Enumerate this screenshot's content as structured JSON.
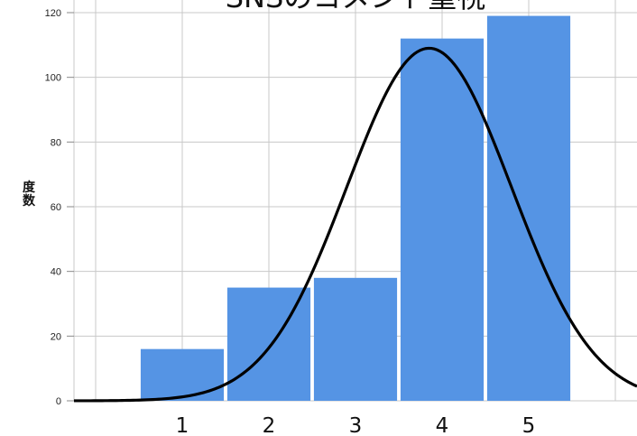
{
  "chart_data": {
    "type": "bar",
    "title": "SNSのコメント重視",
    "xlabel": "",
    "ylabel": "度数",
    "categories": [
      "1",
      "2",
      "3",
      "4",
      "5"
    ],
    "values": [
      16,
      35,
      38,
      112,
      119
    ],
    "ylim": [
      0,
      120
    ],
    "yticks": [
      0,
      20,
      40,
      60,
      80,
      100,
      120
    ],
    "xlim": [
      -0.25,
      6.25
    ],
    "grid": true,
    "bar_color": "#5594e4",
    "curve": {
      "type": "normal",
      "peak_x": 3.85,
      "peak_y": 109,
      "sd": 0.95,
      "color": "#000000"
    }
  }
}
